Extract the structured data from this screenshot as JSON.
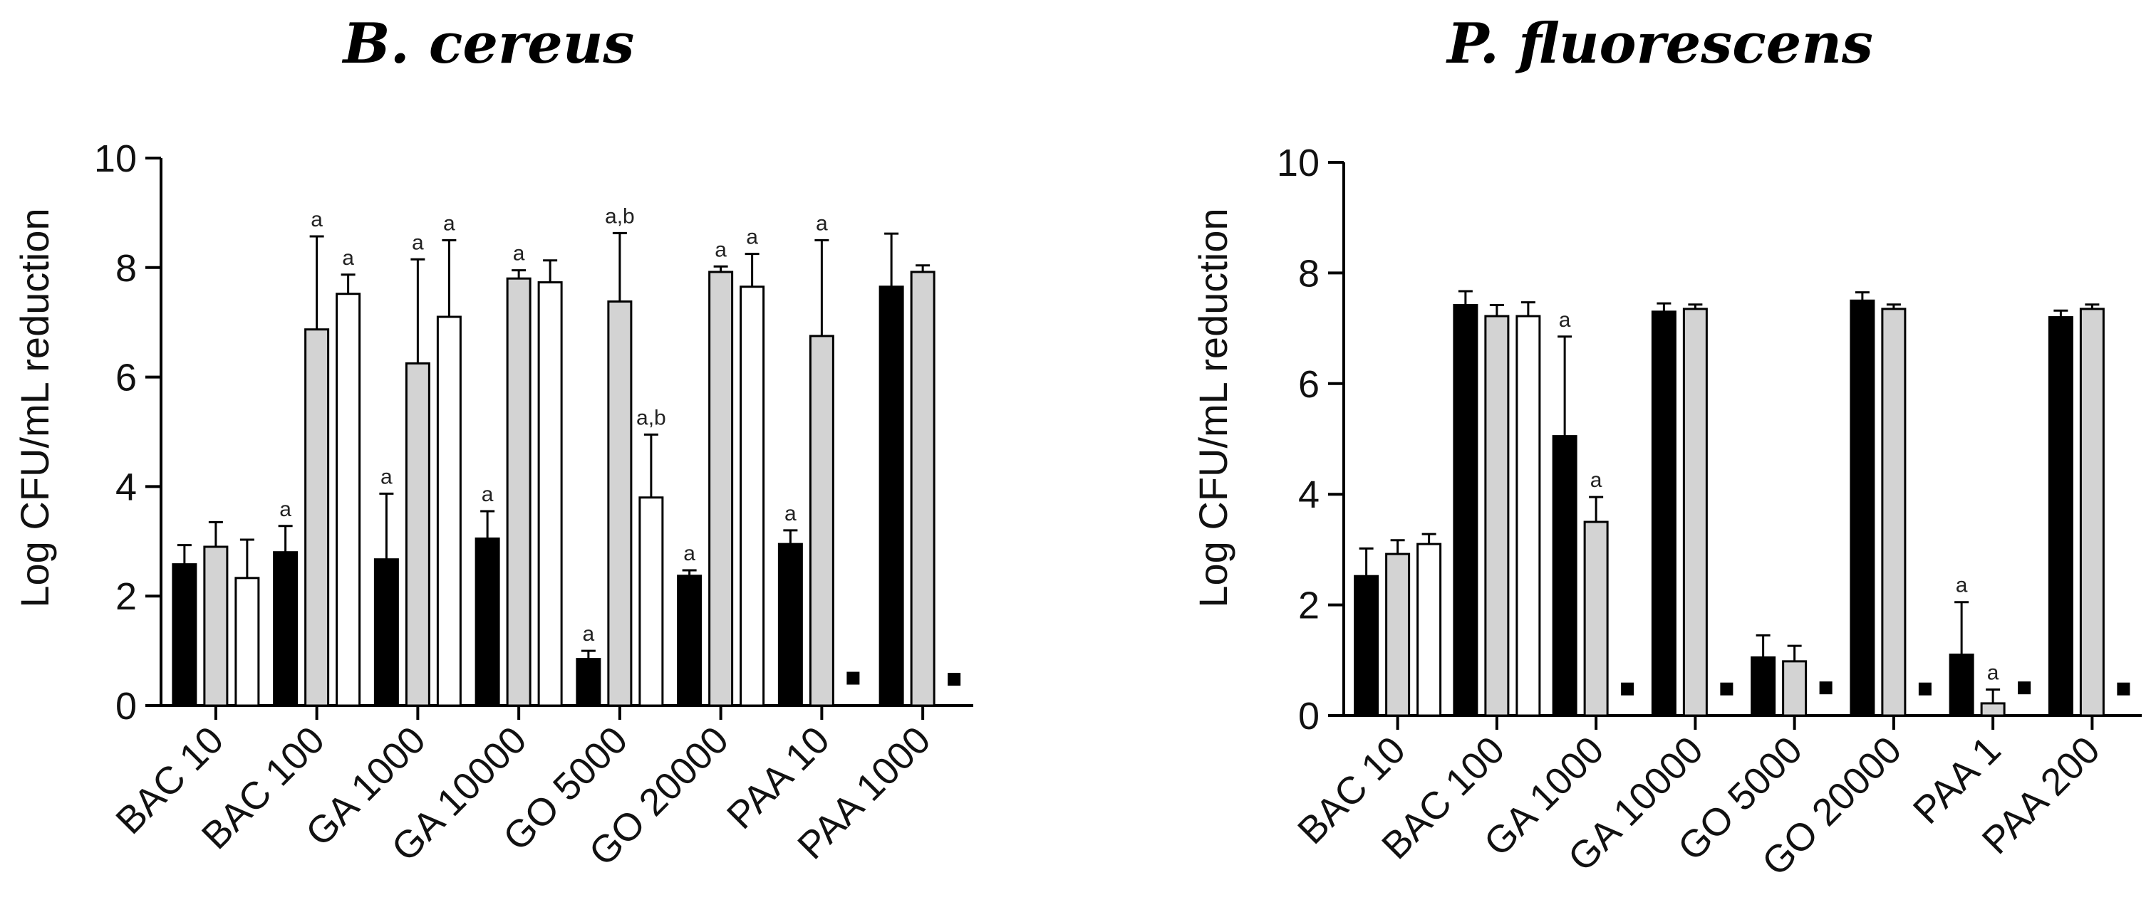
{
  "chart_data": [
    {
      "type": "bar",
      "title": "B. cereus",
      "ylabel": "Log CFU/mL reduction",
      "xlabel": "",
      "ylim": [
        0,
        10
      ],
      "yticks": [
        0,
        2,
        4,
        6,
        8,
        10
      ],
      "categories": [
        "BAC 10",
        "BAC 100",
        "GA 1000",
        "GA 10000",
        "GO 5000",
        "GO 20000",
        "PAA 10",
        "PAA 1000"
      ],
      "series": [
        {
          "name": "black",
          "color": "#000000",
          "values": [
            2.58,
            2.8,
            2.67,
            3.05,
            0.85,
            2.37,
            2.95,
            7.65
          ],
          "errors": [
            0.35,
            0.48,
            1.2,
            0.5,
            0.15,
            0.1,
            0.25,
            0.97
          ],
          "labels": [
            "",
            "a",
            "a",
            "a",
            "a",
            "a",
            "a",
            ""
          ],
          "markers": [
            false,
            false,
            false,
            false,
            false,
            false,
            false,
            false
          ]
        },
        {
          "name": "gray",
          "color": "#d3d3d3",
          "values": [
            2.9,
            6.87,
            6.25,
            7.8,
            7.38,
            7.92,
            6.75,
            7.92
          ],
          "errors": [
            0.45,
            1.7,
            1.9,
            0.15,
            1.25,
            0.1,
            1.75,
            0.12
          ],
          "labels": [
            "",
            "a",
            "a",
            "a",
            "a,b",
            "a",
            "a",
            ""
          ],
          "markers": [
            false,
            false,
            false,
            false,
            false,
            false,
            false,
            false
          ]
        },
        {
          "name": "white",
          "color": "#ffffff",
          "values": [
            2.33,
            7.52,
            7.1,
            7.73,
            3.8,
            7.65,
            0.5,
            0.48
          ],
          "errors": [
            0.7,
            0.35,
            1.4,
            0.4,
            1.15,
            0.6,
            0,
            0
          ],
          "labels": [
            "",
            "a",
            "a",
            "",
            "a,b",
            "a",
            "",
            ""
          ],
          "markers": [
            false,
            false,
            false,
            false,
            false,
            false,
            true,
            true
          ]
        }
      ]
    },
    {
      "type": "bar",
      "title": "P. fluorescens",
      "ylabel": "Log CFU/mL reduction",
      "xlabel": "",
      "ylim": [
        0,
        10
      ],
      "yticks": [
        0,
        2,
        4,
        6,
        8,
        10
      ],
      "categories": [
        "BAC 10",
        "BAC 100",
        "GA 1000",
        "GA 10000",
        "GO 5000",
        "GO 20000",
        "PAA 1",
        "PAA 200"
      ],
      "series": [
        {
          "name": "black",
          "color": "#000000",
          "values": [
            2.52,
            7.42,
            5.05,
            7.3,
            1.05,
            7.5,
            1.1,
            7.2
          ],
          "errors": [
            0.5,
            0.25,
            1.8,
            0.15,
            0.4,
            0.15,
            0.95,
            0.12
          ],
          "labels": [
            "",
            "",
            "a",
            "",
            "",
            "",
            "a",
            ""
          ],
          "markers": [
            false,
            false,
            false,
            false,
            false,
            false,
            false,
            false
          ]
        },
        {
          "name": "gray",
          "color": "#d3d3d3",
          "values": [
            2.92,
            7.22,
            3.5,
            7.35,
            0.98,
            7.35,
            0.22,
            7.35
          ],
          "errors": [
            0.25,
            0.2,
            0.45,
            0.08,
            0.28,
            0.08,
            0.25,
            0.08
          ],
          "labels": [
            "",
            "",
            "a",
            "",
            "",
            "",
            "a",
            ""
          ],
          "markers": [
            false,
            false,
            false,
            false,
            false,
            false,
            false,
            false
          ]
        },
        {
          "name": "white",
          "color": "#ffffff",
          "values": [
            3.1,
            7.22,
            0.48,
            0.48,
            0.5,
            0.48,
            0.5,
            0.48
          ],
          "errors": [
            0.18,
            0.25,
            0,
            0,
            0,
            0,
            0,
            0
          ],
          "labels": [
            "",
            "",
            "",
            "",
            "",
            "",
            "",
            ""
          ],
          "markers": [
            false,
            false,
            true,
            true,
            true,
            true,
            true,
            true
          ]
        }
      ]
    }
  ]
}
